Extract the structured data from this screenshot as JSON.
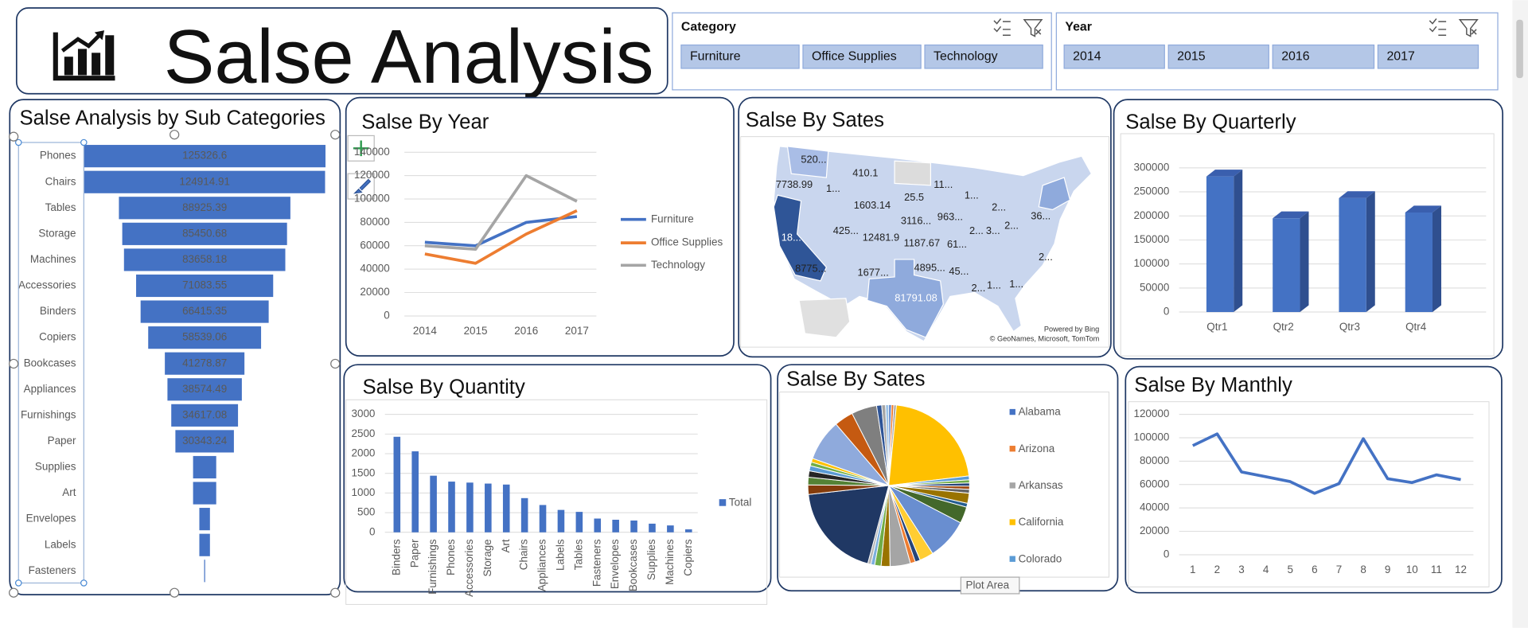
{
  "header": {
    "title": "Salse Analysis"
  },
  "slicers": [
    {
      "title": "Category",
      "items": [
        "Furniture",
        "Office Supplies",
        "Technology"
      ]
    },
    {
      "title": "Year",
      "items": [
        "2014",
        "2015",
        "2016",
        "2017"
      ]
    }
  ],
  "tooltip": "Plot Area",
  "chart_data": [
    {
      "type": "funnel",
      "title": "Salse Analysis by Sub Categories",
      "color": "#4472c4",
      "categories": [
        "Phones",
        "Chairs",
        "Tables",
        "Storage",
        "Machines",
        "Accessories",
        "Binders",
        "Copiers",
        "Bookcases",
        "Appliances",
        "Furnishings",
        "Paper",
        "Supplies",
        "Art",
        "Envelopes",
        "Labels",
        "Fasteners"
      ],
      "values": [
        125326.6,
        124914.91,
        88925.39,
        85450.68,
        83658.18,
        71083.55,
        66415.35,
        58539.06,
        41278.87,
        38574.49,
        34617.08,
        30343.24,
        12000,
        12000,
        5500,
        5500,
        500
      ],
      "value_labels": [
        "125326.6",
        "124914.91",
        "88925.39",
        "85450.68",
        "83658.18",
        "71083.55",
        "66415.35",
        "58539.06",
        "41278.87",
        "38574.49",
        "34617.08",
        "30343.24",
        null,
        null,
        null,
        null,
        null
      ]
    },
    {
      "type": "line",
      "title": "Salse By Year",
      "categories": [
        2014,
        2015,
        2016,
        2017
      ],
      "series": [
        {
          "name": "Furniture",
          "color": "#4472c4",
          "values": [
            63000,
            60000,
            80000,
            85000
          ]
        },
        {
          "name": "Office Supplies",
          "color": "#ed7d31",
          "values": [
            53000,
            45000,
            70000,
            90000
          ]
        },
        {
          "name": "Technology",
          "color": "#a5a5a5",
          "values": [
            60000,
            57000,
            120000,
            98000
          ]
        }
      ],
      "ylim": [
        0,
        140000
      ],
      "yticks": [
        0,
        20000,
        40000,
        60000,
        80000,
        100000,
        120000,
        140000
      ],
      "grid": true,
      "legend": "right"
    },
    {
      "type": "map",
      "title": "Salse By Sates",
      "labels": [
        "520...",
        "410.1",
        "7738.99",
        "1...",
        "1603.14",
        "25.5",
        "11...",
        "1...",
        "2...",
        "36...",
        "963...",
        "425...",
        "12481.9",
        "3116...",
        "2...",
        "3...",
        "2...",
        "18...",
        "1187.67",
        "61...",
        "8775...",
        "1677...",
        "4895...",
        "45...",
        "2...",
        "2...",
        "1...",
        "1...",
        "81791.08"
      ],
      "attribution": [
        "Powered by Bing",
        "© GeoNames, Microsoft, TomTom"
      ]
    },
    {
      "type": "bar",
      "three_d": true,
      "title": "Salse By Quarterly",
      "color": "#4472c4",
      "categories": [
        "Qtr1",
        "Qtr2",
        "Qtr3",
        "Qtr4"
      ],
      "values": [
        282000,
        195000,
        237000,
        207000
      ],
      "ylim": [
        0,
        300000
      ],
      "yticks": [
        0,
        50000,
        100000,
        150000,
        200000,
        250000,
        300000
      ],
      "grid": true
    },
    {
      "type": "bar",
      "title": "Salse By Quantity",
      "categories": [
        "Binders",
        "Paper",
        "Furnishings",
        "Phones",
        "Accessories",
        "Storage",
        "Art",
        "Chairs",
        "Appliances",
        "Labels",
        "Tables",
        "Fasteners",
        "Envelopes",
        "Bookcases",
        "Supplies",
        "Machines",
        "Copiers"
      ],
      "series": [
        {
          "name": "Total",
          "color": "#4472c4",
          "values": [
            2430,
            2060,
            1440,
            1290,
            1265,
            1240,
            1215,
            870,
            695,
            570,
            520,
            350,
            320,
            300,
            220,
            175,
            75
          ]
        }
      ],
      "ylim": [
        0,
        3000
      ],
      "yticks": [
        0,
        500,
        1000,
        1500,
        2000,
        2500,
        3000
      ],
      "grid": true,
      "legend": "right"
    },
    {
      "type": "pie",
      "title": "Salse By Sates",
      "categories": [
        "Alabama",
        "Arizona",
        "Arkansas",
        "California",
        "Colorado",
        null,
        null,
        null,
        null,
        null,
        null,
        null,
        null,
        null,
        null,
        null,
        null,
        null,
        null,
        null,
        null,
        null,
        null,
        null,
        null,
        null,
        null,
        null,
        null,
        null,
        null,
        null,
        null,
        null
      ],
      "values": [
        0.4,
        0.4,
        0.4,
        17,
        0.6,
        0.5,
        0.5,
        0.5,
        0.6,
        1.6,
        0.6,
        2.6,
        6.5,
        2.2,
        0.8,
        0.8,
        3.2,
        1.4,
        1.0,
        0.6,
        0.5,
        15,
        1.5,
        1.2,
        1.0,
        0.8,
        0.6,
        0.6,
        6.5,
        3.0,
        4.0,
        0.8,
        0.6,
        0.5
      ],
      "colors": [
        "#4472c4",
        "#ed7d31",
        "#a5a5a5",
        "#ffc000",
        "#5b9bd5",
        "#70ad47",
        "#264478",
        "#9e480e",
        "#636363",
        "#997300",
        "#255e91",
        "#43682b",
        "#698ed0",
        "#ffcd33",
        "#264478",
        "#ed7d31",
        "#a5a5a5",
        "#997300",
        "#70ad47",
        "#7cafdd",
        "#b7b7b7",
        "#203864",
        "#843c0c",
        "#548235",
        "#262626",
        "#5b9bd5",
        "#70ad47",
        "#ffc000",
        "#8faadc",
        "#c55a11",
        "#7f7f7f",
        "#2f5597",
        "#a5a5a5",
        "#9dc3e6"
      ],
      "legend": "right"
    },
    {
      "type": "line",
      "title": "Salse By Manthly",
      "color": "#4472c4",
      "categories": [
        1,
        2,
        3,
        4,
        5,
        6,
        7,
        8,
        9,
        10,
        11,
        12
      ],
      "values": [
        93300,
        103300,
        70800,
        66700,
        62500,
        52500,
        60800,
        99200,
        65000,
        61700,
        68300,
        64200
      ],
      "ylim": [
        0,
        120000
      ],
      "yticks": [
        0,
        20000,
        40000,
        60000,
        80000,
        100000,
        120000
      ],
      "grid": true
    }
  ]
}
